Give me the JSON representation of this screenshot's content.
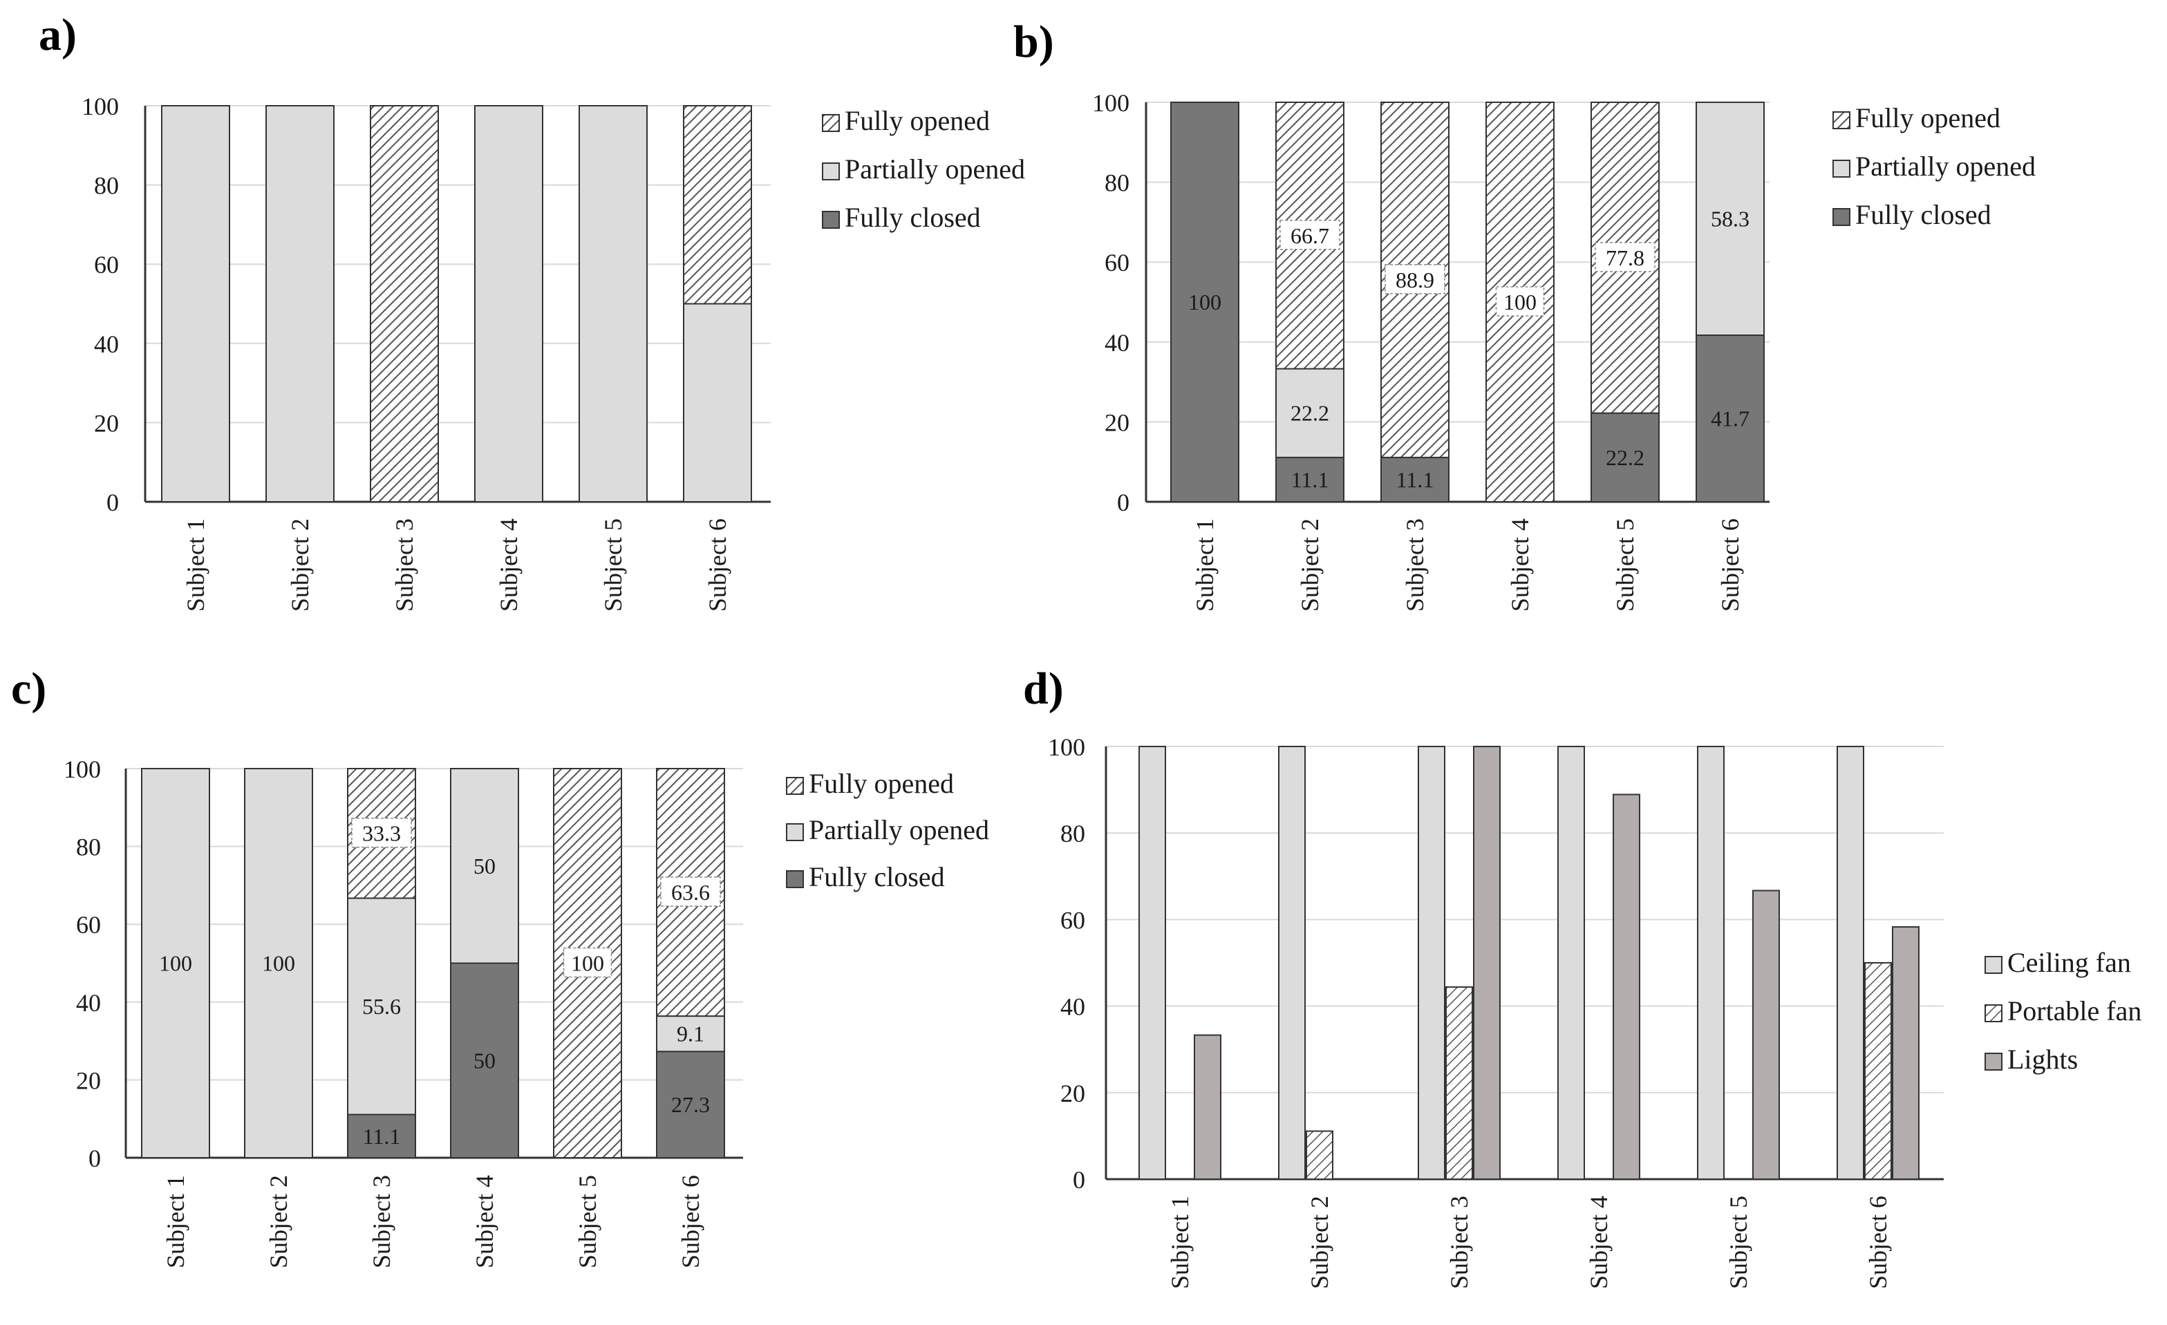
{
  "colors": {
    "opened_bg": "#ffffff",
    "opened_line": "#555555",
    "partial": "#dcdcdc",
    "closed": "#777777",
    "ceiling": "#dcdcdc",
    "portable_bg": "#ffffff",
    "portable_line": "#555555",
    "lights": "#b3adad",
    "edge": "#333333"
  },
  "chart_data": [
    {
      "panel": "a)",
      "type": "stacked_bar",
      "categories": [
        "Subject 1",
        "Subject 2",
        "Subject 3",
        "Subject 4",
        "Subject 5",
        "Subject 6"
      ],
      "ylim": [
        0,
        100
      ],
      "yticks": [
        0,
        20,
        40,
        60,
        80,
        100
      ],
      "legend": [
        "Fully opened",
        "Partially opened",
        "Fully closed"
      ],
      "series": [
        {
          "name": "Fully closed",
          "style": "closed",
          "values": [
            0,
            0,
            0,
            0,
            0,
            0
          ],
          "labels": [
            "",
            "",
            "",
            "",
            "",
            ""
          ]
        },
        {
          "name": "Partially opened",
          "style": "partial",
          "values": [
            100,
            100,
            0,
            100,
            100,
            50
          ],
          "labels": [
            "",
            "",
            "",
            "",
            "",
            ""
          ]
        },
        {
          "name": "Fully opened",
          "style": "opened",
          "values": [
            0,
            0,
            100,
            0,
            0,
            50
          ],
          "labels": [
            "",
            "",
            "",
            "",
            "",
            ""
          ]
        }
      ]
    },
    {
      "panel": "b)",
      "type": "stacked_bar",
      "categories": [
        "Subject 1",
        "Subject 2",
        "Subject 3",
        "Subject 4",
        "Subject 5",
        "Subject 6"
      ],
      "ylim": [
        0,
        100
      ],
      "yticks": [
        0,
        20,
        40,
        60,
        80,
        100
      ],
      "legend": [
        "Fully opened",
        "Partially opened",
        "Fully closed"
      ],
      "series": [
        {
          "name": "Fully closed",
          "style": "closed",
          "values": [
            100,
            11.1,
            11.1,
            0,
            22.2,
            41.7
          ],
          "labels": [
            "100",
            "11.1",
            "11.1",
            "",
            "22.2",
            "41.7"
          ]
        },
        {
          "name": "Partially opened",
          "style": "partial",
          "values": [
            0,
            22.2,
            0,
            0,
            0,
            58.3
          ],
          "labels": [
            "",
            "22.2",
            "",
            "",
            "",
            "58.3"
          ]
        },
        {
          "name": "Fully opened",
          "style": "opened",
          "values": [
            0,
            66.7,
            88.9,
            100,
            77.8,
            0
          ],
          "labels": [
            "",
            "66.7",
            "88.9",
            "100",
            "77.8",
            ""
          ]
        }
      ]
    },
    {
      "panel": "c)",
      "type": "stacked_bar",
      "categories": [
        "Subject 1",
        "Subject 2",
        "Subject 3",
        "Subject 4",
        "Subject 5",
        "Subject 6"
      ],
      "ylim": [
        0,
        100
      ],
      "yticks": [
        0,
        20,
        40,
        60,
        80,
        100
      ],
      "legend": [
        "Fully opened",
        "Partially opened",
        "Fully closed"
      ],
      "series": [
        {
          "name": "Fully closed",
          "style": "closed",
          "values": [
            0,
            0,
            11.1,
            50,
            0,
            27.3
          ],
          "labels": [
            "",
            "",
            "11.1",
            "50",
            "",
            "27.3"
          ]
        },
        {
          "name": "Partially opened",
          "style": "partial",
          "values": [
            100,
            100,
            55.6,
            50,
            0,
            9.1
          ],
          "labels": [
            "100",
            "100",
            "55.6",
            "50",
            "",
            "9.1"
          ]
        },
        {
          "name": "Fully opened",
          "style": "opened",
          "values": [
            0,
            0,
            33.3,
            0,
            100,
            63.6
          ],
          "labels": [
            "",
            "",
            "33.3",
            "",
            "100",
            "63.6"
          ]
        }
      ]
    },
    {
      "panel": "d)",
      "type": "bar",
      "categories": [
        "Subject 1",
        "Subject 2",
        "Subject 3",
        "Subject 4",
        "Subject 5",
        "Subject 6"
      ],
      "ylim": [
        0,
        100
      ],
      "yticks": [
        0,
        20,
        40,
        60,
        80,
        100
      ],
      "legend": [
        "Ceiling fan",
        "Portable fan",
        "Lights"
      ],
      "series": [
        {
          "name": "Ceiling fan",
          "style": "ceiling",
          "values": [
            100,
            100,
            100,
            100,
            100,
            100
          ]
        },
        {
          "name": "Portable fan",
          "style": "portable",
          "values": [
            0,
            11.1,
            44.4,
            0,
            0,
            50
          ]
        },
        {
          "name": "Lights",
          "style": "lights",
          "values": [
            33.3,
            0,
            100,
            88.9,
            66.7,
            58.3
          ]
        }
      ]
    }
  ]
}
